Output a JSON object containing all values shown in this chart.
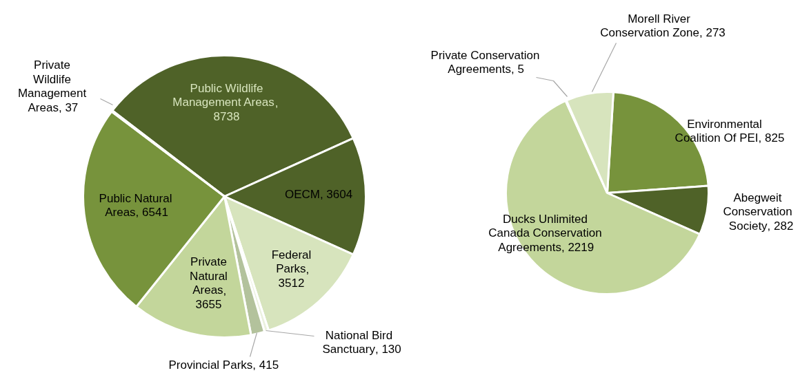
{
  "chart_data": [
    {
      "type": "pie",
      "categories": [
        "Public Wildlife Management Areas",
        "OECM",
        "Federal Parks",
        "National Bird Sanctuary",
        "Provincial Parks",
        "Private Natural Areas",
        "Public Natural Areas",
        "Private Wildlife Management Areas"
      ],
      "values": [
        8738,
        3604,
        3512,
        130,
        415,
        3655,
        6541,
        37
      ],
      "colors": [
        "#4f6228",
        "#4f6228",
        "#d7e4bd",
        "#ebf1de",
        "#b3c29c",
        "#c3d69b",
        "#77933c",
        "#d9dfcb"
      ],
      "value_labels": [
        ", 8738",
        ", 3604",
        ", 3512",
        ", 130",
        ", 415",
        ", 3655",
        ", 6541",
        ", 37"
      ]
    },
    {
      "type": "pie",
      "categories": [
        "Environmental Coalition Of PEI",
        "Abegweit Conservation Society",
        "Ducks Unlimited Canada Conservation Agreements",
        "Private Conservation Agreements",
        "Morell River Conservation Zone"
      ],
      "values": [
        825,
        282,
        2219,
        5,
        273
      ],
      "colors": [
        "#77933c",
        "#4f6228",
        "#c3d69b",
        "#77933c",
        "#d7e4bd"
      ],
      "value_labels": [
        ", 825",
        ", 282",
        ", 2219",
        ", 5",
        ", 273"
      ]
    }
  ]
}
